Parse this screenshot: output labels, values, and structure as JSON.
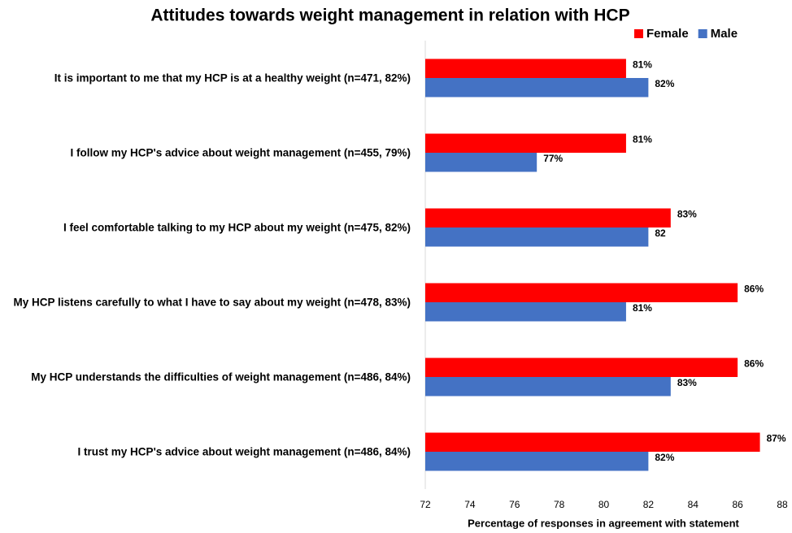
{
  "chart_data": {
    "type": "hbar",
    "title": "Attitudes towards weight management in relation with HCP",
    "x_label": "Percentage of responses in agreement with statement",
    "categories": [
      "It is important to me that my HCP is at a healthy weight (n=471, 82%)",
      "I follow my HCP's advice about weight management (n=455, 79%)",
      "I feel comfortable talking to my HCP about my weight (n=475, 82%)",
      "My HCP listens carefully to what I have to say about my weight (n=478, 83%)",
      "My HCP understands the difficulties of weight management (n=486, 84%)",
      "I trust my HCP's advice about weight management (n=486, 84%)"
    ],
    "series": [
      {
        "name": "Female",
        "color": "#ff0000",
        "values": [
          81,
          81,
          83,
          86,
          86,
          87
        ],
        "value_labels": [
          "81%",
          "81%",
          "83%",
          "86%",
          "86%",
          "87%"
        ]
      },
      {
        "name": "Male",
        "color": "#4472c4",
        "values": [
          82,
          77,
          82,
          81,
          83,
          82
        ],
        "value_labels": [
          "82%",
          "77%",
          "82",
          "81%",
          "83%",
          "82%"
        ]
      }
    ],
    "xlim": [
      72,
      88
    ],
    "xticks": [
      72,
      74,
      76,
      78,
      80,
      82,
      84,
      86,
      88
    ],
    "legend": "top-right"
  }
}
